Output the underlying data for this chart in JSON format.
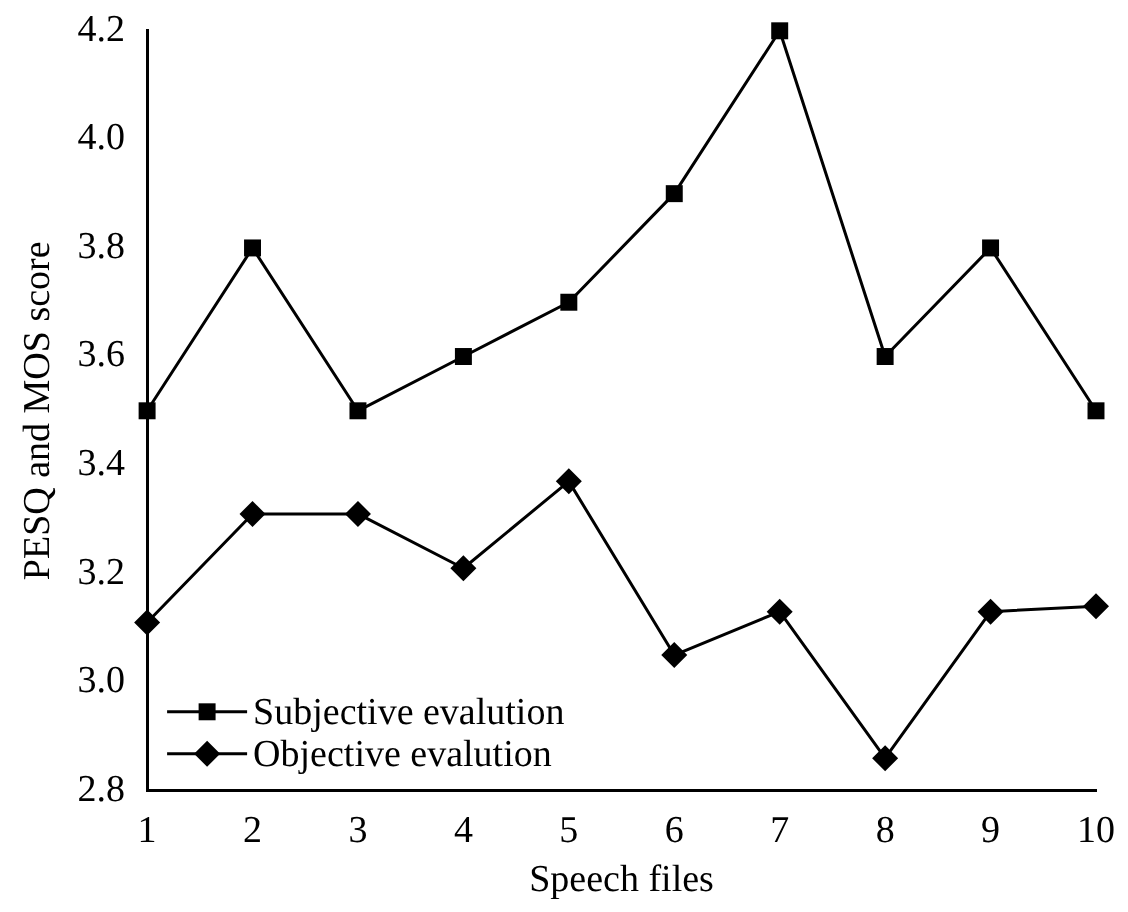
{
  "chart_data": {
    "type": "line",
    "xlabel": "Speech files",
    "ylabel": "PESQ and MOS score",
    "categories": [
      "1",
      "2",
      "3",
      "4",
      "5",
      "6",
      "7",
      "8",
      "9",
      "10"
    ],
    "series": [
      {
        "name": "Subjective evalution",
        "color": "#000000",
        "marker": "square",
        "values": [
          3.5,
          3.8,
          3.5,
          3.6,
          3.7,
          3.9,
          4.2,
          3.6,
          3.8,
          3.5
        ]
      },
      {
        "name": "Objective evalution",
        "color": "#000000",
        "marker": "diamond",
        "values": [
          3.11,
          3.31,
          3.31,
          3.21,
          3.37,
          3.05,
          3.13,
          2.86,
          3.13,
          3.14
        ]
      }
    ],
    "ylim": [
      2.8,
      4.2
    ],
    "yticks": [
      {
        "value": 2.8,
        "label": "2.8"
      },
      {
        "value": 3.0,
        "label": "3.0"
      },
      {
        "value": 3.2,
        "label": "3.2"
      },
      {
        "value": 3.4,
        "label": "3.4"
      },
      {
        "value": 3.6,
        "label": "3.6"
      },
      {
        "value": 3.8,
        "label": "3.8"
      },
      {
        "value": 4.0,
        "label": "4.0"
      },
      {
        "value": 4.2,
        "label": "4.2"
      }
    ],
    "grid": false,
    "legend": "bottom left",
    "line_style": "solid"
  }
}
